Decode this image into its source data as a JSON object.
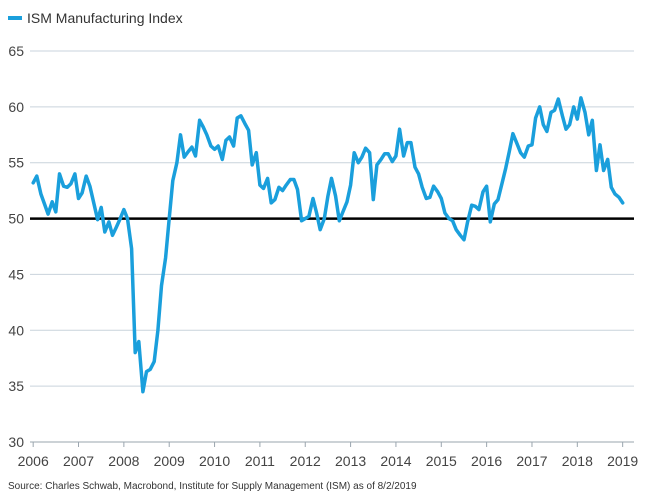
{
  "chart_data": {
    "type": "line",
    "legend": {
      "position": "top-left",
      "entries": [
        "ISM Manufacturing Index"
      ]
    },
    "series": [
      {
        "name": "ISM Manufacturing Index",
        "color": "#1a9fdc",
        "points": [
          [
            2006.0,
            53.2
          ],
          [
            2006.08,
            53.8
          ],
          [
            2006.17,
            52.2
          ],
          [
            2006.25,
            51.3
          ],
          [
            2006.33,
            50.4
          ],
          [
            2006.42,
            51.5
          ],
          [
            2006.5,
            50.6
          ],
          [
            2006.58,
            54.0
          ],
          [
            2006.67,
            52.9
          ],
          [
            2006.75,
            52.8
          ],
          [
            2006.83,
            53.1
          ],
          [
            2006.92,
            54.0
          ],
          [
            2007.0,
            51.8
          ],
          [
            2007.08,
            52.3
          ],
          [
            2007.17,
            53.8
          ],
          [
            2007.25,
            52.9
          ],
          [
            2007.33,
            51.5
          ],
          [
            2007.42,
            49.9
          ],
          [
            2007.5,
            51.0
          ],
          [
            2007.58,
            48.8
          ],
          [
            2007.67,
            49.7
          ],
          [
            2007.75,
            48.5
          ],
          [
            2007.83,
            49.2
          ],
          [
            2007.92,
            50.0
          ],
          [
            2008.0,
            50.8
          ],
          [
            2008.08,
            50.0
          ],
          [
            2008.17,
            47.3
          ],
          [
            2008.25,
            38.0
          ],
          [
            2008.33,
            39.0
          ],
          [
            2008.42,
            34.5
          ],
          [
            2008.5,
            36.3
          ],
          [
            2008.58,
            36.5
          ],
          [
            2008.67,
            37.2
          ],
          [
            2008.75,
            40.0
          ],
          [
            2008.83,
            44.0
          ],
          [
            2008.92,
            46.5
          ],
          [
            2009.0,
            50.0
          ],
          [
            2009.08,
            53.4
          ],
          [
            2009.17,
            55.0
          ],
          [
            2009.25,
            57.5
          ],
          [
            2009.33,
            55.5
          ],
          [
            2009.42,
            56.0
          ],
          [
            2009.5,
            56.4
          ],
          [
            2009.58,
            55.6
          ],
          [
            2009.67,
            58.8
          ],
          [
            2009.75,
            58.2
          ],
          [
            2009.83,
            57.5
          ],
          [
            2009.92,
            56.5
          ],
          [
            2010.0,
            56.2
          ],
          [
            2010.08,
            56.5
          ],
          [
            2010.17,
            55.3
          ],
          [
            2010.25,
            57.0
          ],
          [
            2010.33,
            57.3
          ],
          [
            2010.42,
            56.5
          ],
          [
            2010.5,
            59.0
          ],
          [
            2010.58,
            59.2
          ],
          [
            2010.67,
            58.5
          ],
          [
            2010.75,
            57.9
          ],
          [
            2010.83,
            54.8
          ],
          [
            2010.92,
            55.9
          ],
          [
            2011.0,
            53.0
          ],
          [
            2011.08,
            52.7
          ],
          [
            2011.17,
            53.6
          ],
          [
            2011.25,
            51.4
          ],
          [
            2011.33,
            51.7
          ],
          [
            2011.42,
            52.8
          ],
          [
            2011.5,
            52.5
          ],
          [
            2011.58,
            53.0
          ],
          [
            2011.67,
            53.5
          ],
          [
            2011.75,
            53.5
          ],
          [
            2011.83,
            52.6
          ],
          [
            2011.92,
            49.8
          ],
          [
            2012.0,
            50.0
          ],
          [
            2012.08,
            50.2
          ],
          [
            2012.17,
            51.8
          ],
          [
            2012.25,
            50.5
          ],
          [
            2012.33,
            49.0
          ],
          [
            2012.42,
            50.0
          ],
          [
            2012.5,
            52.0
          ],
          [
            2012.58,
            53.6
          ],
          [
            2012.67,
            52.0
          ],
          [
            2012.75,
            49.8
          ],
          [
            2012.83,
            50.6
          ],
          [
            2012.92,
            51.5
          ],
          [
            2013.0,
            53.0
          ],
          [
            2013.08,
            55.9
          ],
          [
            2013.17,
            55.0
          ],
          [
            2013.25,
            55.5
          ],
          [
            2013.33,
            56.3
          ],
          [
            2013.42,
            55.9
          ],
          [
            2013.5,
            51.7
          ],
          [
            2013.58,
            54.8
          ],
          [
            2013.67,
            55.3
          ],
          [
            2013.75,
            55.8
          ],
          [
            2013.83,
            55.8
          ],
          [
            2013.92,
            55.1
          ],
          [
            2014.0,
            55.6
          ],
          [
            2014.08,
            58.0
          ],
          [
            2014.17,
            55.6
          ],
          [
            2014.25,
            56.8
          ],
          [
            2014.33,
            56.8
          ],
          [
            2014.42,
            54.6
          ],
          [
            2014.5,
            54.0
          ],
          [
            2014.58,
            52.8
          ],
          [
            2014.67,
            51.8
          ],
          [
            2014.75,
            51.9
          ],
          [
            2014.83,
            52.9
          ],
          [
            2014.92,
            52.4
          ],
          [
            2015.0,
            51.8
          ],
          [
            2015.08,
            50.5
          ],
          [
            2015.17,
            50.0
          ],
          [
            2015.25,
            49.8
          ],
          [
            2015.33,
            49.0
          ],
          [
            2015.42,
            48.5
          ],
          [
            2015.5,
            48.1
          ],
          [
            2015.58,
            49.7
          ],
          [
            2015.67,
            51.2
          ],
          [
            2015.75,
            51.1
          ],
          [
            2015.83,
            50.8
          ],
          [
            2015.92,
            52.4
          ],
          [
            2016.0,
            52.9
          ],
          [
            2016.08,
            49.7
          ],
          [
            2016.17,
            51.3
          ],
          [
            2016.25,
            51.7
          ],
          [
            2016.33,
            53.0
          ],
          [
            2016.42,
            54.5
          ],
          [
            2016.5,
            56.0
          ],
          [
            2016.58,
            57.6
          ],
          [
            2016.67,
            56.7
          ],
          [
            2016.75,
            55.9
          ],
          [
            2016.83,
            55.5
          ],
          [
            2016.92,
            56.5
          ],
          [
            2017.0,
            56.6
          ],
          [
            2017.08,
            59.0
          ],
          [
            2017.17,
            60.0
          ],
          [
            2017.25,
            58.4
          ],
          [
            2017.33,
            57.8
          ],
          [
            2017.42,
            59.5
          ],
          [
            2017.5,
            59.7
          ],
          [
            2017.58,
            60.7
          ],
          [
            2017.67,
            59.2
          ],
          [
            2017.75,
            58.0
          ],
          [
            2017.83,
            58.4
          ],
          [
            2017.92,
            60.0
          ],
          [
            2018.0,
            58.9
          ],
          [
            2018.08,
            60.8
          ],
          [
            2018.17,
            59.5
          ],
          [
            2018.25,
            57.5
          ],
          [
            2018.33,
            58.8
          ],
          [
            2018.42,
            54.3
          ],
          [
            2018.5,
            56.6
          ],
          [
            2018.58,
            54.3
          ],
          [
            2018.67,
            55.3
          ],
          [
            2018.75,
            52.8
          ],
          [
            2018.83,
            52.2
          ],
          [
            2018.92,
            51.9
          ],
          [
            2019.0,
            51.4
          ]
        ]
      }
    ],
    "reference_line": {
      "y": 50,
      "color": "#000000"
    },
    "xlim": [
      2005.93,
      2019.25
    ],
    "ylim": [
      30,
      65
    ],
    "xticks": [
      "2006",
      "2007",
      "2008",
      "2009",
      "2010",
      "2011",
      "2012",
      "2013",
      "2014",
      "2015",
      "2016",
      "2017",
      "2018",
      "2019"
    ],
    "xtick_values": [
      2006,
      2007,
      2008,
      2009,
      2010,
      2011,
      2012,
      2013,
      2014,
      2015,
      2016,
      2017,
      2018,
      2019
    ],
    "yticks": [
      30,
      35,
      40,
      45,
      50,
      55,
      60,
      65
    ],
    "grid": {
      "horizontal": true,
      "vertical": false,
      "color": "#c9d3dc"
    },
    "source": "Source: Charles Schwab, Macrobond, Institute for Supply Management (ISM) as of 8/2/2019"
  }
}
